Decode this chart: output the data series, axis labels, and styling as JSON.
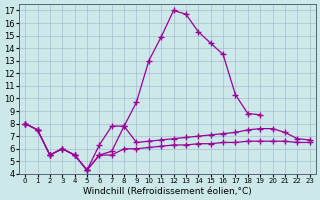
{
  "x": [
    0,
    1,
    2,
    3,
    4,
    5,
    6,
    7,
    8,
    9,
    10,
    11,
    12,
    13,
    14,
    15,
    16,
    17,
    18,
    19,
    20,
    21,
    22,
    23
  ],
  "y_upper": [
    8.0,
    7.5,
    5.5,
    6.0,
    5.5,
    4.3,
    6.3,
    7.8,
    7.8,
    9.7,
    13.0,
    14.9,
    17.0,
    16.7,
    15.3,
    14.4,
    13.5,
    10.3,
    8.8,
    8.7,
    null,
    null,
    null,
    null
  ],
  "y_mid": [
    8.0,
    7.5,
    5.5,
    6.0,
    5.5,
    4.3,
    5.5,
    5.8,
    7.8,
    6.5,
    6.6,
    6.7,
    6.8,
    6.9,
    7.0,
    7.1,
    7.2,
    7.3,
    7.5,
    7.6,
    7.6,
    7.3,
    6.8,
    6.7
  ],
  "y_lower": [
    8.0,
    7.5,
    5.5,
    6.0,
    5.5,
    4.3,
    5.5,
    5.5,
    6.0,
    6.0,
    6.1,
    6.2,
    6.3,
    6.3,
    6.4,
    6.4,
    6.5,
    6.5,
    6.6,
    6.6,
    6.6,
    6.6,
    6.5,
    6.5
  ],
  "line_color": "#990099",
  "bg_color": "#cce8e8",
  "grid_color": "#aabbd0",
  "xlabel": "Windchill (Refroidissement éolien,°C)",
  "xlim_min": -0.5,
  "xlim_max": 23.5,
  "ylim_min": 4.0,
  "ylim_max": 17.5,
  "yticks": [
    4,
    5,
    6,
    7,
    8,
    9,
    10,
    11,
    12,
    13,
    14,
    15,
    16,
    17
  ],
  "xticks": [
    0,
    1,
    2,
    3,
    4,
    5,
    6,
    7,
    8,
    9,
    10,
    11,
    12,
    13,
    14,
    15,
    16,
    17,
    18,
    19,
    20,
    21,
    22,
    23
  ],
  "marker": "+",
  "markersize": 4,
  "linewidth": 0.9,
  "xlabel_fontsize": 6.5,
  "tick_fontsize_x": 5,
  "tick_fontsize_y": 6
}
